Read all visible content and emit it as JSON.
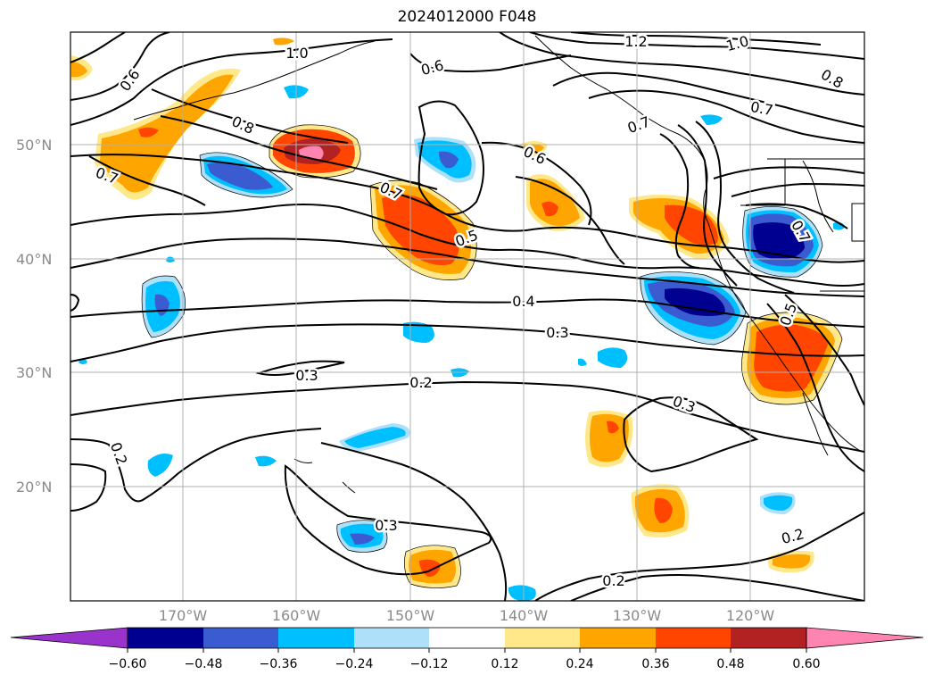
{
  "title": "2024012000 F048",
  "axes": {
    "lat_labels": [
      "50°N",
      "40°N",
      "30°N",
      "20°N"
    ],
    "lon_labels": [
      "170°W",
      "160°W",
      "150°W",
      "140°W",
      "130°W",
      "120°W"
    ]
  },
  "contour_labels": [
    "0.6",
    "1.0",
    "0.6",
    "1.2",
    "1.0",
    "0.8",
    "0.8",
    "0.7",
    "0.7",
    "0.7",
    "0.7",
    "0.6",
    "0.5",
    "0.4",
    "0.3",
    "0.3",
    "0.2",
    "0.2",
    "0.3",
    "0.3",
    "0.2",
    "0.2",
    "0.5",
    "0.7"
  ],
  "colorbar": {
    "tick_labels": [
      "−0.60",
      "−0.48",
      "−0.36",
      "−0.24",
      "−0.12",
      "0.12",
      "0.24",
      "0.36",
      "0.48",
      "0.60"
    ],
    "colors": [
      "#9a33cc",
      "#000090",
      "#3b5bd0",
      "#00bfff",
      "#aee0fa",
      "#ffffff",
      "#ffe88a",
      "#ffa500",
      "#ff4500",
      "#b22222",
      "#ff85b0"
    ]
  }
}
